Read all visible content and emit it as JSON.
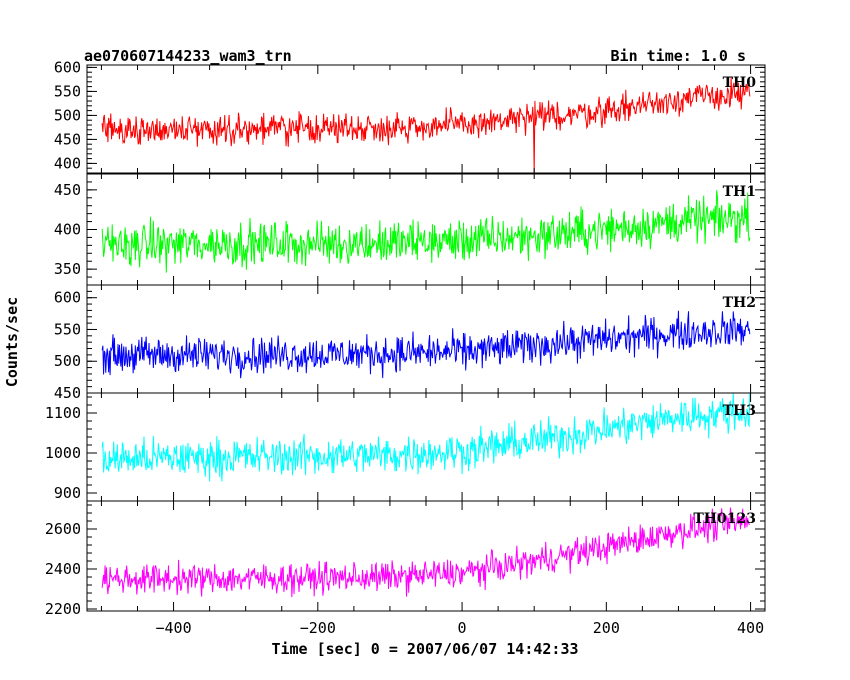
{
  "header": {
    "title": "ae070607144233_wam3_trn",
    "bin_time": "Bin time: 1.0 s"
  },
  "axes": {
    "xlabel": "Time [sec] 0 = 2007/06/07 14:42:33",
    "ylabel": "Counts/sec"
  },
  "chart_data": {
    "type": "line",
    "title": "ae070607144233_wam3_trn",
    "xlabel": "Time [sec] 0 = 2007/06/07 14:42:33",
    "ylabel": "Counts/sec",
    "xlim": [
      -520,
      420
    ],
    "x_start": -499,
    "x_end": 399,
    "x_step": 1,
    "x_ticks": [
      -400,
      -200,
      0,
      200,
      400
    ],
    "grid": false,
    "panels": [
      {
        "name": "TH0",
        "color": "#ff0000",
        "ylim": [
          380,
          605
        ],
        "y_ticks": [
          400,
          450,
          500,
          550,
          600
        ],
        "trend_x": [
          -500,
          -300,
          -100,
          0,
          100,
          200,
          300,
          400
        ],
        "trend_y": [
          470,
          472,
          475,
          480,
          495,
          510,
          535,
          545
        ],
        "noise_amplitude": 45,
        "dips": [
          {
            "x": 100,
            "y": 380
          }
        ]
      },
      {
        "name": "TH1",
        "color": "#00ff00",
        "ylim": [
          330,
          470
        ],
        "y_ticks": [
          350,
          400,
          450
        ],
        "trend_x": [
          -500,
          -300,
          -100,
          0,
          100,
          200,
          300,
          400
        ],
        "trend_y": [
          381,
          382,
          383,
          386,
          392,
          400,
          410,
          415
        ],
        "noise_amplitude": 40
      },
      {
        "name": "TH2",
        "color": "#0000ff",
        "ylim": [
          450,
          620
        ],
        "y_ticks": [
          450,
          500,
          550,
          600
        ],
        "trend_x": [
          -500,
          -300,
          -100,
          0,
          100,
          200,
          300,
          400
        ],
        "trend_y": [
          510,
          510,
          512,
          515,
          525,
          535,
          545,
          550
        ],
        "noise_amplitude": 42
      },
      {
        "name": "TH3",
        "color": "#00ffff",
        "ylim": [
          880,
          1150
        ],
        "y_ticks": [
          900,
          1000,
          1100
        ],
        "trend_x": [
          -500,
          -300,
          -100,
          0,
          100,
          200,
          300,
          400
        ],
        "trend_y": [
          985,
          990,
          995,
          1005,
          1030,
          1060,
          1090,
          1105
        ],
        "noise_amplitude": 70
      },
      {
        "name": "TH0123",
        "color": "#ff00ff",
        "ylim": [
          2190,
          2740
        ],
        "y_ticks": [
          2200,
          2400,
          2600
        ],
        "trend_x": [
          -500,
          -300,
          -100,
          0,
          100,
          200,
          300,
          400
        ],
        "trend_y": [
          2350,
          2352,
          2360,
          2380,
          2440,
          2510,
          2590,
          2640
        ],
        "noise_amplitude": 110
      }
    ]
  }
}
